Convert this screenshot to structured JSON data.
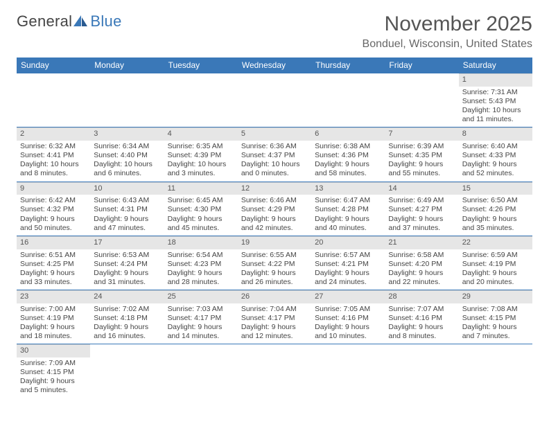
{
  "logo": {
    "text1": "General",
    "text2": "Blue"
  },
  "title": "November 2025",
  "location": "Bonduel, Wisconsin, United States",
  "colors": {
    "header_bg": "#3a78b8",
    "header_text": "#ffffff",
    "daynum_bg": "#e6e6e6",
    "row_border": "#3a78b8",
    "text": "#444444",
    "title_text": "#555555"
  },
  "weekdays": [
    "Sunday",
    "Monday",
    "Tuesday",
    "Wednesday",
    "Thursday",
    "Friday",
    "Saturday"
  ],
  "weeks": [
    [
      null,
      null,
      null,
      null,
      null,
      null,
      {
        "n": "1",
        "sunrise": "Sunrise: 7:31 AM",
        "sunset": "Sunset: 5:43 PM",
        "daylight": "Daylight: 10 hours and 11 minutes."
      }
    ],
    [
      {
        "n": "2",
        "sunrise": "Sunrise: 6:32 AM",
        "sunset": "Sunset: 4:41 PM",
        "daylight": "Daylight: 10 hours and 8 minutes."
      },
      {
        "n": "3",
        "sunrise": "Sunrise: 6:34 AM",
        "sunset": "Sunset: 4:40 PM",
        "daylight": "Daylight: 10 hours and 6 minutes."
      },
      {
        "n": "4",
        "sunrise": "Sunrise: 6:35 AM",
        "sunset": "Sunset: 4:39 PM",
        "daylight": "Daylight: 10 hours and 3 minutes."
      },
      {
        "n": "5",
        "sunrise": "Sunrise: 6:36 AM",
        "sunset": "Sunset: 4:37 PM",
        "daylight": "Daylight: 10 hours and 0 minutes."
      },
      {
        "n": "6",
        "sunrise": "Sunrise: 6:38 AM",
        "sunset": "Sunset: 4:36 PM",
        "daylight": "Daylight: 9 hours and 58 minutes."
      },
      {
        "n": "7",
        "sunrise": "Sunrise: 6:39 AM",
        "sunset": "Sunset: 4:35 PM",
        "daylight": "Daylight: 9 hours and 55 minutes."
      },
      {
        "n": "8",
        "sunrise": "Sunrise: 6:40 AM",
        "sunset": "Sunset: 4:33 PM",
        "daylight": "Daylight: 9 hours and 52 minutes."
      }
    ],
    [
      {
        "n": "9",
        "sunrise": "Sunrise: 6:42 AM",
        "sunset": "Sunset: 4:32 PM",
        "daylight": "Daylight: 9 hours and 50 minutes."
      },
      {
        "n": "10",
        "sunrise": "Sunrise: 6:43 AM",
        "sunset": "Sunset: 4:31 PM",
        "daylight": "Daylight: 9 hours and 47 minutes."
      },
      {
        "n": "11",
        "sunrise": "Sunrise: 6:45 AM",
        "sunset": "Sunset: 4:30 PM",
        "daylight": "Daylight: 9 hours and 45 minutes."
      },
      {
        "n": "12",
        "sunrise": "Sunrise: 6:46 AM",
        "sunset": "Sunset: 4:29 PM",
        "daylight": "Daylight: 9 hours and 42 minutes."
      },
      {
        "n": "13",
        "sunrise": "Sunrise: 6:47 AM",
        "sunset": "Sunset: 4:28 PM",
        "daylight": "Daylight: 9 hours and 40 minutes."
      },
      {
        "n": "14",
        "sunrise": "Sunrise: 6:49 AM",
        "sunset": "Sunset: 4:27 PM",
        "daylight": "Daylight: 9 hours and 37 minutes."
      },
      {
        "n": "15",
        "sunrise": "Sunrise: 6:50 AM",
        "sunset": "Sunset: 4:26 PM",
        "daylight": "Daylight: 9 hours and 35 minutes."
      }
    ],
    [
      {
        "n": "16",
        "sunrise": "Sunrise: 6:51 AM",
        "sunset": "Sunset: 4:25 PM",
        "daylight": "Daylight: 9 hours and 33 minutes."
      },
      {
        "n": "17",
        "sunrise": "Sunrise: 6:53 AM",
        "sunset": "Sunset: 4:24 PM",
        "daylight": "Daylight: 9 hours and 31 minutes."
      },
      {
        "n": "18",
        "sunrise": "Sunrise: 6:54 AM",
        "sunset": "Sunset: 4:23 PM",
        "daylight": "Daylight: 9 hours and 28 minutes."
      },
      {
        "n": "19",
        "sunrise": "Sunrise: 6:55 AM",
        "sunset": "Sunset: 4:22 PM",
        "daylight": "Daylight: 9 hours and 26 minutes."
      },
      {
        "n": "20",
        "sunrise": "Sunrise: 6:57 AM",
        "sunset": "Sunset: 4:21 PM",
        "daylight": "Daylight: 9 hours and 24 minutes."
      },
      {
        "n": "21",
        "sunrise": "Sunrise: 6:58 AM",
        "sunset": "Sunset: 4:20 PM",
        "daylight": "Daylight: 9 hours and 22 minutes."
      },
      {
        "n": "22",
        "sunrise": "Sunrise: 6:59 AM",
        "sunset": "Sunset: 4:19 PM",
        "daylight": "Daylight: 9 hours and 20 minutes."
      }
    ],
    [
      {
        "n": "23",
        "sunrise": "Sunrise: 7:00 AM",
        "sunset": "Sunset: 4:19 PM",
        "daylight": "Daylight: 9 hours and 18 minutes."
      },
      {
        "n": "24",
        "sunrise": "Sunrise: 7:02 AM",
        "sunset": "Sunset: 4:18 PM",
        "daylight": "Daylight: 9 hours and 16 minutes."
      },
      {
        "n": "25",
        "sunrise": "Sunrise: 7:03 AM",
        "sunset": "Sunset: 4:17 PM",
        "daylight": "Daylight: 9 hours and 14 minutes."
      },
      {
        "n": "26",
        "sunrise": "Sunrise: 7:04 AM",
        "sunset": "Sunset: 4:17 PM",
        "daylight": "Daylight: 9 hours and 12 minutes."
      },
      {
        "n": "27",
        "sunrise": "Sunrise: 7:05 AM",
        "sunset": "Sunset: 4:16 PM",
        "daylight": "Daylight: 9 hours and 10 minutes."
      },
      {
        "n": "28",
        "sunrise": "Sunrise: 7:07 AM",
        "sunset": "Sunset: 4:16 PM",
        "daylight": "Daylight: 9 hours and 8 minutes."
      },
      {
        "n": "29",
        "sunrise": "Sunrise: 7:08 AM",
        "sunset": "Sunset: 4:15 PM",
        "daylight": "Daylight: 9 hours and 7 minutes."
      }
    ],
    [
      {
        "n": "30",
        "sunrise": "Sunrise: 7:09 AM",
        "sunset": "Sunset: 4:15 PM",
        "daylight": "Daylight: 9 hours and 5 minutes."
      },
      null,
      null,
      null,
      null,
      null,
      null
    ]
  ]
}
